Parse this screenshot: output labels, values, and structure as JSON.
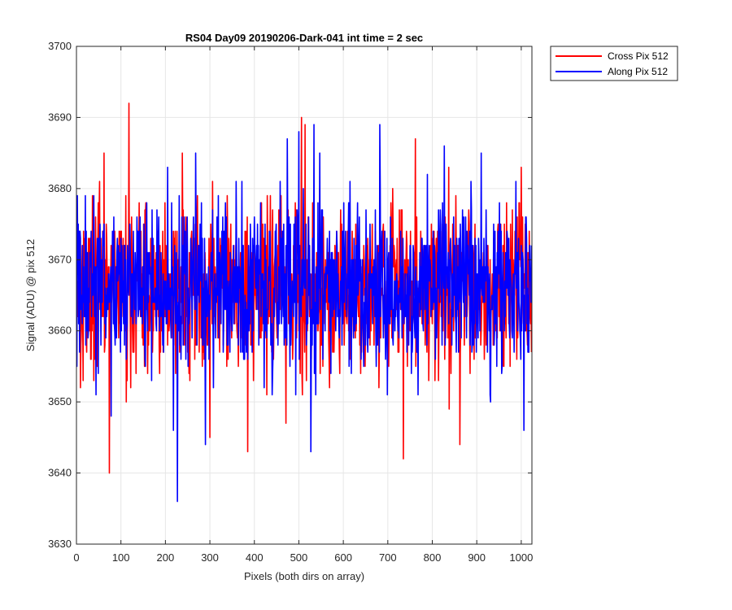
{
  "chart_data": {
    "type": "line",
    "title": "RS04 Day09 20190206-Dark-041 int time = 2 sec",
    "xlabel": "Pixels (both dirs on array)",
    "ylabel": "Signal (ADU) @ pix 512",
    "xlim": [
      0,
      1024
    ],
    "ylim": [
      3630,
      3700
    ],
    "xticks": [
      0,
      100,
      200,
      300,
      400,
      500,
      600,
      700,
      800,
      900,
      1000
    ],
    "yticks": [
      3630,
      3640,
      3650,
      3660,
      3670,
      3680,
      3690,
      3700
    ],
    "grid": true,
    "legend_placement": "outside-top-right",
    "noise_profile": {
      "n_points": 1024,
      "mean": 3666,
      "std": 6
    },
    "series": [
      {
        "name": "Cross Pix 512",
        "color": "#ff0000",
        "seed": 17,
        "peaks": [
          {
            "x": 118,
            "y": 3692
          },
          {
            "x": 74,
            "y": 3640
          },
          {
            "x": 62,
            "y": 3685
          },
          {
            "x": 238,
            "y": 3685
          },
          {
            "x": 300,
            "y": 3645
          },
          {
            "x": 385,
            "y": 3643
          },
          {
            "x": 506,
            "y": 3690
          },
          {
            "x": 514,
            "y": 3689
          },
          {
            "x": 471,
            "y": 3647
          },
          {
            "x": 735,
            "y": 3642
          },
          {
            "x": 762,
            "y": 3687
          },
          {
            "x": 862,
            "y": 3644
          },
          {
            "x": 1000,
            "y": 3683
          }
        ]
      },
      {
        "name": "Along Pix 512",
        "color": "#0000ff",
        "seed": 42,
        "peaks": [
          {
            "x": 227,
            "y": 3636
          },
          {
            "x": 78,
            "y": 3648
          },
          {
            "x": 218,
            "y": 3646
          },
          {
            "x": 268,
            "y": 3685
          },
          {
            "x": 290,
            "y": 3644
          },
          {
            "x": 527,
            "y": 3643
          },
          {
            "x": 534,
            "y": 3689
          },
          {
            "x": 474,
            "y": 3687
          },
          {
            "x": 500,
            "y": 3688
          },
          {
            "x": 682,
            "y": 3689
          },
          {
            "x": 827,
            "y": 3686
          },
          {
            "x": 910,
            "y": 3685
          },
          {
            "x": 1006,
            "y": 3646
          }
        ]
      }
    ]
  }
}
